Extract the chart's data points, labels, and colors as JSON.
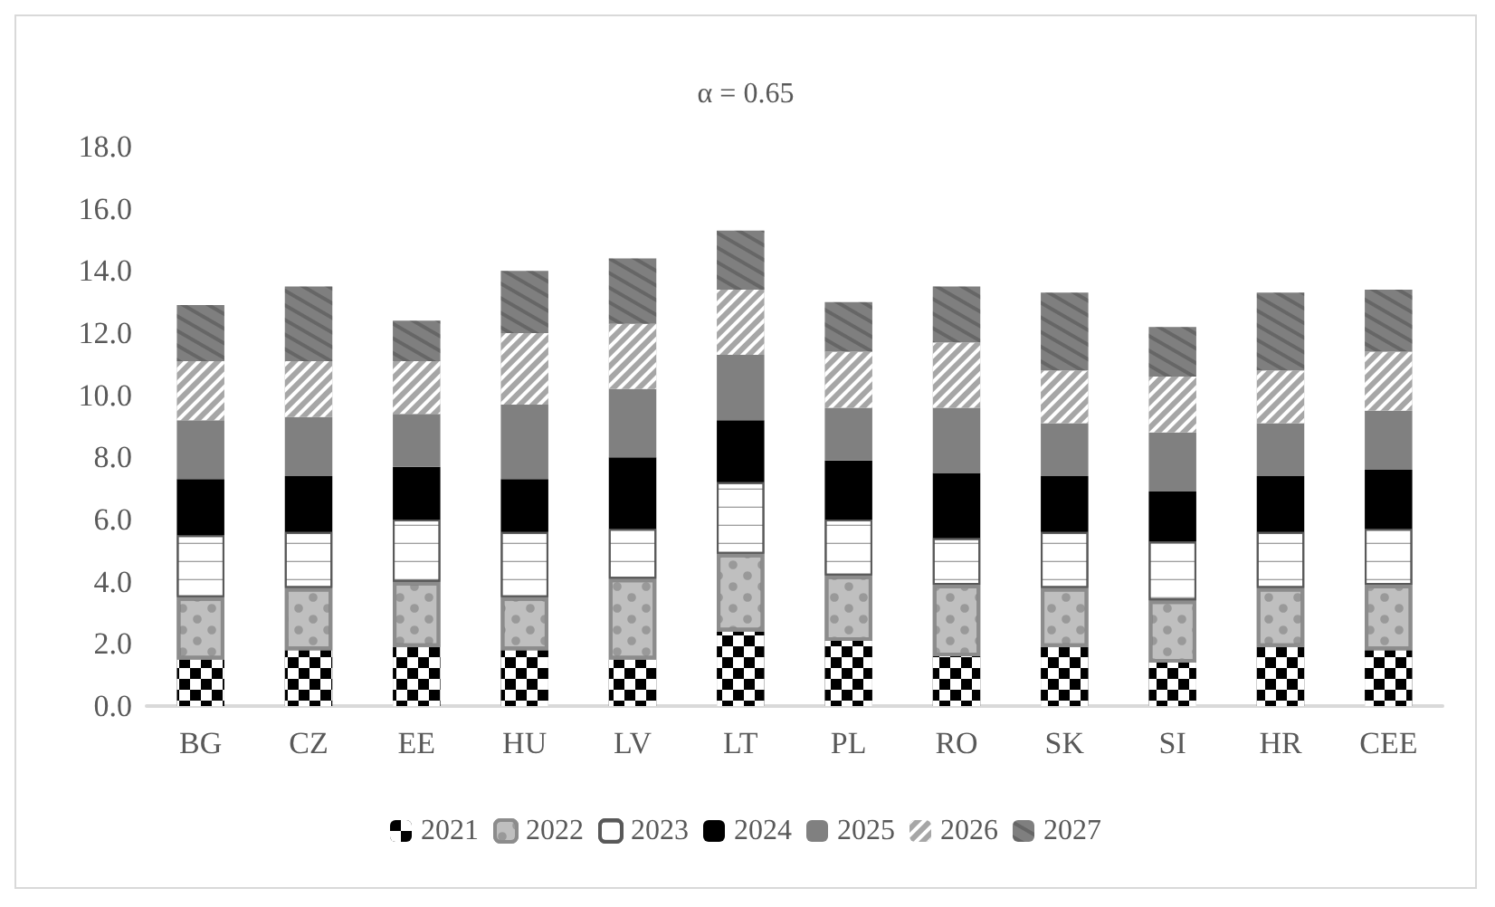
{
  "chart_data": {
    "type": "bar",
    "title": "α = 0.65",
    "stacked": true,
    "grid": false,
    "legend": "bottom",
    "categories": [
      "BG",
      "CZ",
      "EE",
      "HU",
      "LV",
      "LT",
      "PL",
      "RO",
      "SK",
      "SI",
      "HR",
      "CEE"
    ],
    "ylim": [
      0,
      18
    ],
    "yticks": [
      {
        "value": 0,
        "label": "0.0"
      },
      {
        "value": 2,
        "label": "2.0"
      },
      {
        "value": 4,
        "label": "4.0"
      },
      {
        "value": 6,
        "label": "6.0"
      },
      {
        "value": 8,
        "label": "8.0"
      },
      {
        "value": 10,
        "label": "10.0"
      },
      {
        "value": 12,
        "label": "12.0"
      },
      {
        "value": 14,
        "label": "14.0"
      },
      {
        "value": 16,
        "label": "16.0"
      },
      {
        "value": 18,
        "label": "18.0"
      }
    ],
    "series": [
      {
        "name": "2021",
        "color": "#000000",
        "values": [
          1.5,
          1.8,
          1.9,
          1.8,
          1.5,
          2.4,
          2.1,
          1.6,
          1.9,
          1.4,
          1.9,
          1.8
        ]
      },
      {
        "name": "2022",
        "color": "#bfbfbf",
        "values": [
          2.0,
          2.0,
          2.1,
          1.7,
          2.6,
          2.5,
          2.1,
          2.3,
          1.9,
          2.0,
          1.9,
          2.1
        ]
      },
      {
        "name": "2023",
        "color": "#ffffff",
        "values": [
          2.0,
          1.8,
          2.0,
          2.1,
          1.6,
          2.3,
          1.8,
          1.5,
          1.8,
          1.9,
          1.8,
          1.8
        ]
      },
      {
        "name": "2024",
        "color": "#000000",
        "values": [
          1.8,
          1.8,
          1.7,
          1.7,
          2.3,
          2.0,
          1.9,
          2.1,
          1.8,
          1.6,
          1.8,
          1.9
        ]
      },
      {
        "name": "2025",
        "color": "#808080",
        "values": [
          1.9,
          1.9,
          1.7,
          2.4,
          2.2,
          2.1,
          1.7,
          2.1,
          1.7,
          1.9,
          1.7,
          1.9
        ]
      },
      {
        "name": "2026",
        "color": "#a6a6a6",
        "values": [
          1.9,
          1.8,
          1.7,
          2.3,
          2.1,
          2.1,
          1.8,
          2.1,
          1.7,
          1.8,
          1.7,
          1.9
        ]
      },
      {
        "name": "2027",
        "color": "#7f7f7f",
        "values": [
          1.8,
          2.4,
          1.3,
          2.0,
          2.1,
          1.9,
          1.6,
          1.8,
          2.5,
          1.6,
          2.5,
          2.0
        ]
      }
    ]
  }
}
